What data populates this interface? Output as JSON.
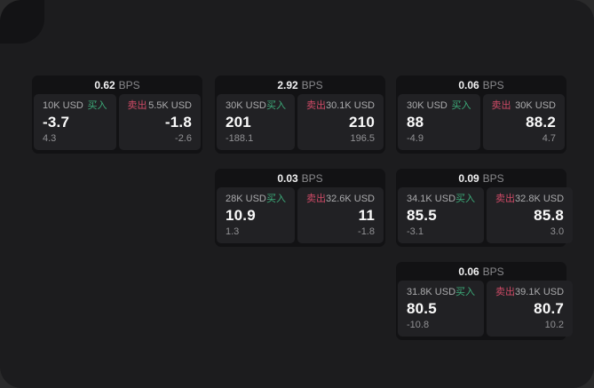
{
  "labels": {
    "bps_unit": "BPS",
    "buy": "买入",
    "sell": "卖出"
  },
  "colors": {
    "window_bg": "#1c1c1e",
    "card_bg": "#121214",
    "panel_bg": "#212124",
    "buy_green": "#3cab79",
    "sell_red": "#cf4a66",
    "value_white": "#fafafa",
    "muted_gray": "#919194"
  },
  "cards": [
    {
      "bps": "0.62",
      "buy": {
        "amount": "10K USD",
        "value": "-3.7",
        "change": "4.3"
      },
      "sell": {
        "amount": "5.5K USD",
        "value": "-1.8",
        "change": "-2.6"
      }
    },
    {
      "bps": "2.92",
      "buy": {
        "amount": "30K USD",
        "value": "201",
        "change": "-188.1"
      },
      "sell": {
        "amount": "30.1K USD",
        "value": "210",
        "change": "196.5"
      }
    },
    {
      "bps": "0.06",
      "buy": {
        "amount": "30K USD",
        "value": "88",
        "change": "-4.9"
      },
      "sell": {
        "amount": "30K USD",
        "value": "88.2",
        "change": "4.7"
      }
    },
    {
      "bps": "0.03",
      "buy": {
        "amount": "28K USD",
        "value": "10.9",
        "change": "1.3"
      },
      "sell": {
        "amount": "32.6K USD",
        "value": "11",
        "change": "-1.8"
      }
    },
    {
      "bps": "0.09",
      "buy": {
        "amount": "34.1K USD",
        "value": "85.5",
        "change": "-3.1"
      },
      "sell": {
        "amount": "32.8K USD",
        "value": "85.8",
        "change": "3.0"
      }
    },
    {
      "bps": "0.06",
      "buy": {
        "amount": "31.8K USD",
        "value": "80.5",
        "change": "-10.8"
      },
      "sell": {
        "amount": "39.1K USD",
        "value": "80.7",
        "change": "10.2"
      }
    }
  ]
}
